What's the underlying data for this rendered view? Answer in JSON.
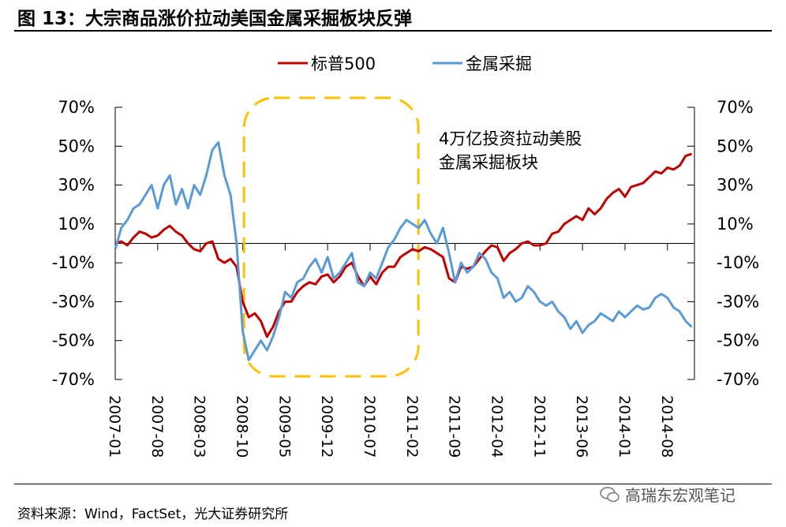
{
  "title": "图 13：大宗商品涨价拉动美国金属采掘板块反弹",
  "source": "资料来源：Wind，FactSet，光大证券研究所",
  "watermark": "高瑞东宏观笔记",
  "chart_data": {
    "type": "line",
    "title": "",
    "xlabel": "",
    "ylabel": "",
    "ylim": [
      -70,
      70
    ],
    "yticks": [
      "70%",
      "50%",
      "30%",
      "10%",
      "-10%",
      "-30%",
      "-50%",
      "-70%"
    ],
    "ytick_values": [
      70,
      50,
      30,
      10,
      -10,
      -30,
      -50,
      -70
    ],
    "right_axis_same_as_left": true,
    "xticks": [
      "2007-01",
      "2007-08",
      "2008-03",
      "2008-10",
      "2009-05",
      "2009-12",
      "2010-07",
      "2011-02",
      "2011-09",
      "2012-04",
      "2012-11",
      "2013-06",
      "2014-01",
      "2014-08"
    ],
    "legend_position": "top-center",
    "grid": false,
    "x": [
      "2007-01",
      "2007-02",
      "2007-03",
      "2007-04",
      "2007-05",
      "2007-06",
      "2007-07",
      "2007-08",
      "2007-09",
      "2007-10",
      "2007-11",
      "2007-12",
      "2008-01",
      "2008-02",
      "2008-03",
      "2008-04",
      "2008-05",
      "2008-06",
      "2008-07",
      "2008-08",
      "2008-09",
      "2008-10",
      "2008-11",
      "2008-12",
      "2009-01",
      "2009-02",
      "2009-03",
      "2009-04",
      "2009-05",
      "2009-06",
      "2009-07",
      "2009-08",
      "2009-09",
      "2009-10",
      "2009-11",
      "2009-12",
      "2010-01",
      "2010-02",
      "2010-03",
      "2010-04",
      "2010-05",
      "2010-06",
      "2010-07",
      "2010-08",
      "2010-09",
      "2010-10",
      "2010-11",
      "2010-12",
      "2011-01",
      "2011-02",
      "2011-03",
      "2011-04",
      "2011-05",
      "2011-06",
      "2011-07",
      "2011-08",
      "2011-09",
      "2011-10",
      "2011-11",
      "2011-12",
      "2012-01",
      "2012-02",
      "2012-03",
      "2012-04",
      "2012-05",
      "2012-06",
      "2012-07",
      "2012-08",
      "2012-09",
      "2012-10",
      "2012-11",
      "2012-12",
      "2013-01",
      "2013-02",
      "2013-03",
      "2013-04",
      "2013-05",
      "2013-06",
      "2013-07",
      "2013-08",
      "2013-09",
      "2013-10",
      "2013-11",
      "2013-12",
      "2014-01",
      "2014-02",
      "2014-03",
      "2014-04",
      "2014-05",
      "2014-06",
      "2014-07",
      "2014-08",
      "2014-09",
      "2014-10",
      "2014-11",
      "2014-12"
    ],
    "series": [
      {
        "name": "标普500",
        "color": "#C00000",
        "values": [
          0,
          1,
          -1,
          3,
          6,
          5,
          3,
          4,
          7,
          9,
          6,
          4,
          0,
          -3,
          -4,
          0,
          1,
          -8,
          -10,
          -8,
          -12,
          -30,
          -38,
          -36,
          -40,
          -48,
          -43,
          -35,
          -30,
          -30,
          -25,
          -22,
          -20,
          -21,
          -17,
          -16,
          -20,
          -17,
          -12,
          -10,
          -17,
          -22,
          -17,
          -21,
          -15,
          -12,
          -12,
          -7,
          -5,
          -3,
          -4,
          -2,
          -3,
          -5,
          -7,
          -18,
          -20,
          -12,
          -13,
          -12,
          -8,
          -4,
          -1,
          -2,
          -9,
          -5,
          -3,
          0,
          1,
          -1,
          -1,
          0,
          5,
          6,
          10,
          12,
          14,
          12,
          18,
          15,
          18,
          23,
          26,
          28,
          24,
          29,
          30,
          31,
          34,
          37,
          36,
          39,
          38,
          40,
          45,
          46
        ]
      },
      {
        "name": "金属采掘",
        "color": "#5B9BD5",
        "values": [
          -3,
          8,
          12,
          18,
          20,
          25,
          30,
          18,
          30,
          35,
          20,
          28,
          18,
          30,
          25,
          35,
          48,
          52,
          35,
          25,
          0,
          -45,
          -60,
          -55,
          -50,
          -55,
          -48,
          -38,
          -25,
          -28,
          -20,
          -18,
          -12,
          -8,
          -15,
          -7,
          -18,
          -15,
          -10,
          -5,
          -20,
          -22,
          -15,
          -18,
          -10,
          -2,
          2,
          8,
          12,
          10,
          8,
          12,
          5,
          0,
          8,
          -5,
          -20,
          -10,
          -15,
          -12,
          -5,
          -8,
          -15,
          -18,
          -28,
          -25,
          -30,
          -28,
          -22,
          -25,
          -30,
          -32,
          -30,
          -35,
          -38,
          -44,
          -40,
          -46,
          -42,
          -40,
          -36,
          -38,
          -40,
          -35,
          -38,
          -35,
          -32,
          -34,
          -33,
          -28,
          -26,
          -28,
          -33,
          -35,
          -40,
          -43
        ]
      }
    ],
    "annotation": {
      "lines": [
        "4万亿投资拉动美股",
        "金属采掘板块"
      ],
      "highlight_color": "#FFC000",
      "highlight_period": [
        "2008-11",
        "2011-04"
      ]
    }
  }
}
